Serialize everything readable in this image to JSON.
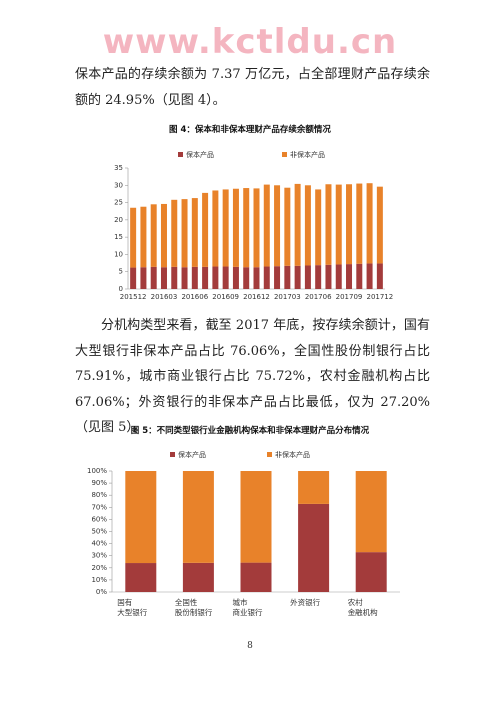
{
  "watermark": "www.kctldu.cn",
  "paragraphs": [
    "保本产品的存续余额为 7.37 万亿元，占全部理财产品存续余额的 24.95%（见图 4）。",
    "分机构类型来看，截至 2017 年底，按存续余额计，国有大型银行非保本产品占比 76.06%，全国性股份制银行占比 75.91%，城市商业银行占比 75.72%，农村金融机构占比 67.06%；外资银行的非保本产品占比最低，仅为 27.20%（见图 5）。"
  ],
  "page_number": "8",
  "chart_data": [
    {
      "type": "stacked-bar",
      "title": "图 4：保本和非保本理财产品存续余额情况",
      "categories": [
        "201512",
        null,
        null,
        "201603",
        null,
        null,
        "201606",
        null,
        null,
        "201609",
        null,
        null,
        "201612",
        null,
        null,
        "201703",
        null,
        null,
        "201706",
        null,
        null,
        "201709",
        null,
        null,
        "201712"
      ],
      "series": [
        {
          "name": "保本产品",
          "color": "#a33b3b",
          "values": [
            6.2,
            6.3,
            6.4,
            6.3,
            6.4,
            6.3,
            6.4,
            6.4,
            6.5,
            6.5,
            6.4,
            6.3,
            6.3,
            6.5,
            6.6,
            6.7,
            6.7,
            6.8,
            6.9,
            7.0,
            7.1,
            7.2,
            7.3,
            7.4,
            7.4
          ]
        },
        {
          "name": "非保本产品",
          "color": "#e8822a",
          "values": [
            17.3,
            17.5,
            18.1,
            18.3,
            19.4,
            19.7,
            19.9,
            21.4,
            22.0,
            22.3,
            22.6,
            22.9,
            22.8,
            23.7,
            23.4,
            22.6,
            23.7,
            23.2,
            21.9,
            23.3,
            23.1,
            23.1,
            23.2,
            23.2,
            22.2
          ]
        }
      ],
      "ylim": [
        0,
        35
      ],
      "yticks": [
        0,
        5,
        10,
        15,
        20,
        25,
        30,
        35
      ]
    },
    {
      "type": "stacked-bar",
      "title": "图 5：不同类型银行业金融机构保本和非保本理财产品分布情况",
      "categories": [
        "国有\n大型银行",
        "全国性\n股份制银行",
        "城市\n商业银行",
        "外资银行",
        "农村\n金融机构"
      ],
      "series": [
        {
          "name": "保本产品",
          "color": "#a33b3b",
          "values": [
            23.94,
            24.09,
            24.28,
            72.8,
            32.94
          ]
        },
        {
          "name": "非保本产品",
          "color": "#e8822a",
          "values": [
            76.06,
            75.91,
            75.72,
            27.2,
            67.06
          ]
        }
      ],
      "ylim": [
        0,
        100
      ],
      "yticks": [
        {
          "value": 0,
          "label": "0%"
        },
        {
          "value": 10,
          "label": "10%"
        },
        {
          "value": 20,
          "label": "20%"
        },
        {
          "value": 30,
          "label": "30%"
        },
        {
          "value": 40,
          "label": "40%"
        },
        {
          "value": 50,
          "label": "50%"
        },
        {
          "value": 60,
          "label": "60%"
        },
        {
          "value": 70,
          "label": "70%"
        },
        {
          "value": 80,
          "label": "80%"
        },
        {
          "value": 90,
          "label": "90%"
        },
        {
          "value": 100,
          "label": "100%"
        }
      ]
    }
  ]
}
